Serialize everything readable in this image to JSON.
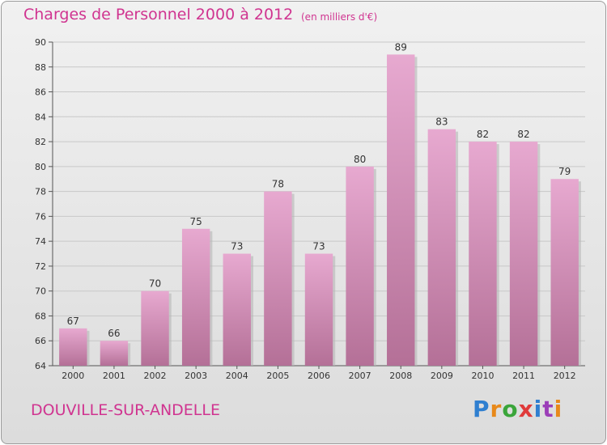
{
  "title": "Charges de Personnel 2000 à 2012",
  "subtitle": "(en milliers d'€)",
  "commune": "DOUVILLE-SUR-ANDELLE",
  "logo": {
    "letters": [
      "P",
      "r",
      "o",
      "x",
      "i",
      "t",
      "i"
    ],
    "colors": [
      "#2f7fd0",
      "#e8891a",
      "#3aa53a",
      "#e03a3a",
      "#2f7fd0",
      "#9c3fb8",
      "#e8891a"
    ]
  },
  "colors": {
    "title": "#d03490",
    "bar_top": "#e7a9d0",
    "bar_bottom": "#b47097"
  },
  "chart_data": {
    "type": "bar",
    "title": "Charges de Personnel 2000 à 2012",
    "subtitle": "(en milliers d'€)",
    "xlabel": "",
    "ylabel": "",
    "categories": [
      "2000",
      "2001",
      "2002",
      "2003",
      "2004",
      "2005",
      "2006",
      "2007",
      "2008",
      "2009",
      "2010",
      "2011",
      "2012"
    ],
    "values": [
      67,
      66,
      70,
      75,
      73,
      78,
      73,
      80,
      89,
      83,
      82,
      82,
      79
    ],
    "ylim": [
      64,
      90
    ],
    "yticks": [
      64,
      66,
      68,
      70,
      72,
      74,
      76,
      78,
      80,
      82,
      84,
      86,
      88,
      90
    ],
    "grid": true,
    "data_labels": true
  }
}
